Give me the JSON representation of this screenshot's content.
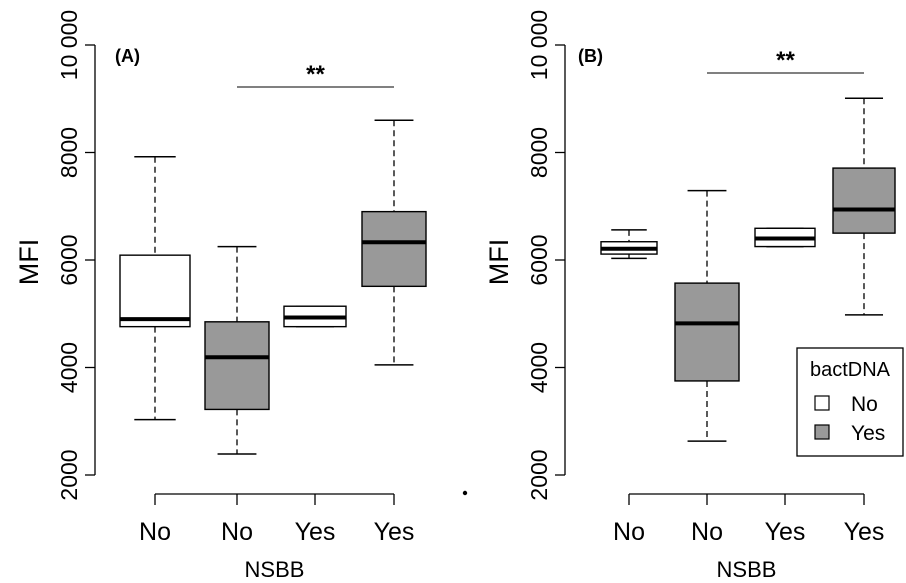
{
  "chart_data": [
    {
      "type": "box",
      "panel_label": "(A)",
      "xlabel": "NSBB",
      "ylabel": "MFI",
      "ylim": [
        2000,
        10000
      ],
      "yticks": [
        2000,
        4000,
        6000,
        8000,
        10000
      ],
      "ytick_labels": [
        "2000",
        "4000",
        "6000",
        "8000",
        "10 000"
      ],
      "categories": [
        "No",
        "No",
        "Yes",
        "Yes"
      ],
      "bactDNA": [
        "No",
        "Yes",
        "No",
        "Yes"
      ],
      "boxes": [
        {
          "whisker_low": 3030,
          "q1": 4760,
          "median": 4900,
          "q3": 6090,
          "whisker_high": 7920
        },
        {
          "whisker_low": 2390,
          "q1": 3220,
          "median": 4190,
          "q3": 4850,
          "whisker_high": 6250
        },
        {
          "whisker_low": 4760,
          "q1": 4760,
          "median": 4930,
          "q3": 5140,
          "whisker_high": 5140
        },
        {
          "whisker_low": 4050,
          "q1": 5510,
          "median": 6330,
          "q3": 6900,
          "whisker_high": 8600
        }
      ],
      "significance": {
        "label": "**",
        "from": 2,
        "to": 4
      }
    },
    {
      "type": "box",
      "panel_label": "(B)",
      "xlabel": "NSBB",
      "ylabel": "MFI",
      "ylim": [
        2000,
        10000
      ],
      "yticks": [
        2000,
        4000,
        6000,
        8000,
        10000
      ],
      "ytick_labels": [
        "2000",
        "4000",
        "6000",
        "8000",
        "10 000"
      ],
      "categories": [
        "No",
        "No",
        "Yes",
        "Yes"
      ],
      "bactDNA": [
        "No",
        "Yes",
        "No",
        "Yes"
      ],
      "boxes": [
        {
          "whisker_low": 6030,
          "q1": 6110,
          "median": 6210,
          "q3": 6340,
          "whisker_high": 6560
        },
        {
          "whisker_low": 2630,
          "q1": 3750,
          "median": 4820,
          "q3": 5570,
          "whisker_high": 7290
        },
        {
          "whisker_low": 6250,
          "q1": 6250,
          "median": 6400,
          "q3": 6590,
          "whisker_high": 6590
        },
        {
          "whisker_low": 4980,
          "q1": 6500,
          "median": 6940,
          "q3": 7710,
          "whisker_high": 9010
        }
      ],
      "significance": {
        "label": "**",
        "from": 2,
        "to": 4
      },
      "legend": {
        "title": "bactDNA",
        "entries": [
          {
            "label": "No",
            "color": "#ffffff"
          },
          {
            "label": "Yes",
            "color": "#999999"
          }
        ],
        "position": "right"
      }
    }
  ],
  "colors": {
    "no": "#ffffff",
    "yes": "#999999",
    "stroke": "#000000"
  }
}
